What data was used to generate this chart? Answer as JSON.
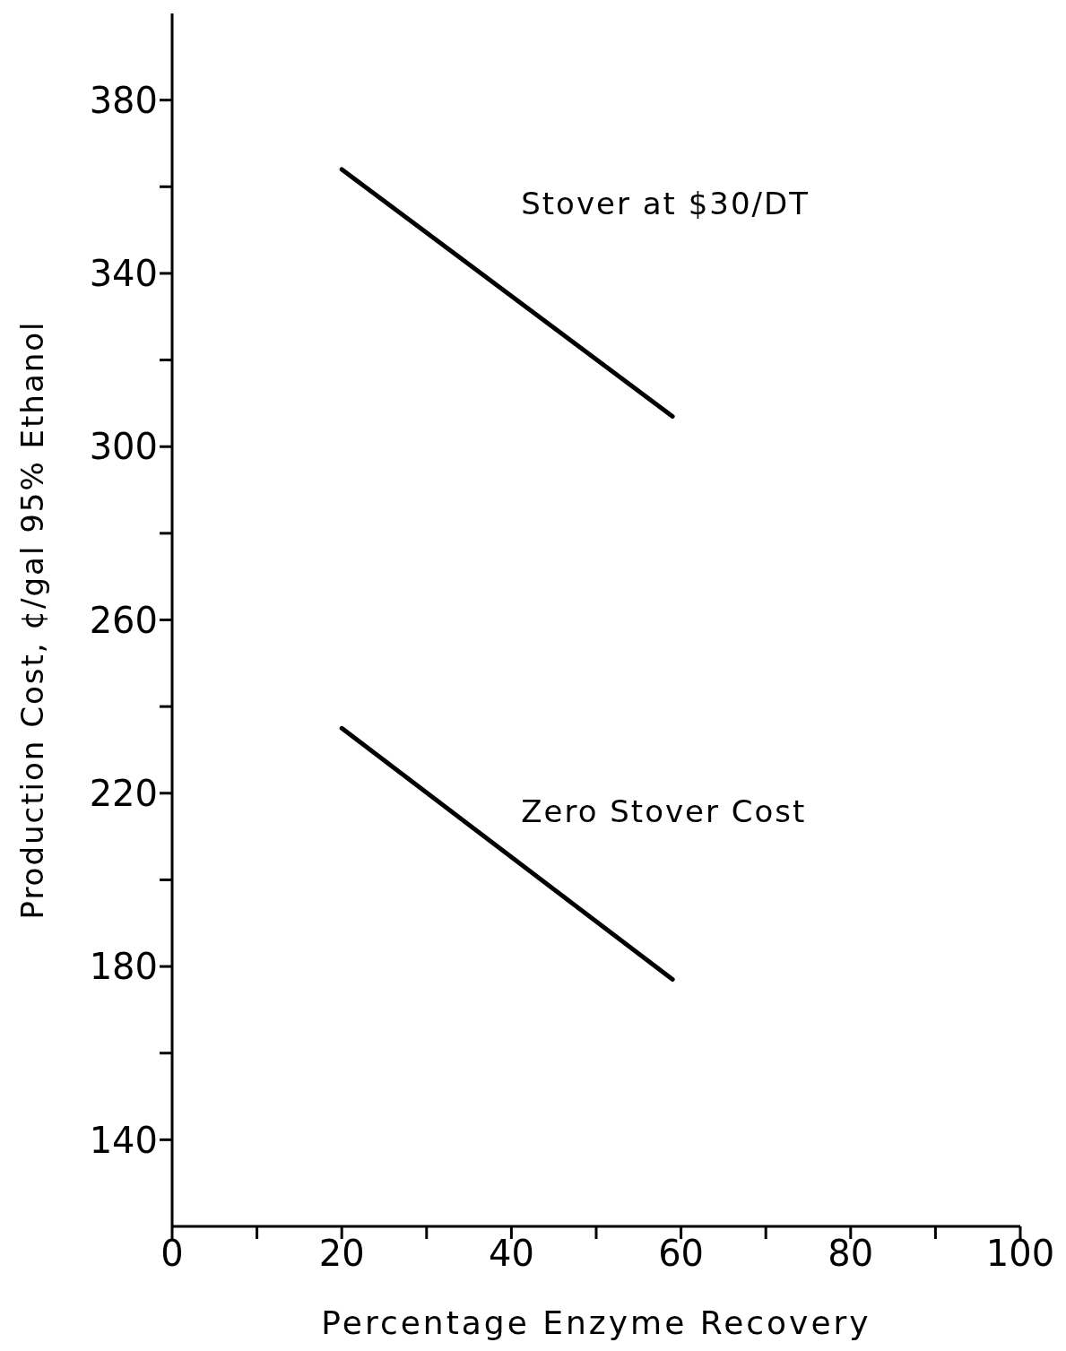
{
  "chart_data": {
    "type": "line",
    "xlabel": "Percentage Enzyme Recovery",
    "ylabel": "Production Cost,  ¢/gal 95% Ethanol",
    "xlim": [
      0,
      100
    ],
    "ylim": [
      120,
      400
    ],
    "xticks": [
      0,
      {
        "value": 10,
        "label": null
      },
      20,
      {
        "value": 30,
        "label": null
      },
      40,
      {
        "value": 50,
        "label": null
      },
      60,
      {
        "value": 70,
        "label": null
      },
      80,
      {
        "value": 90,
        "label": null
      },
      100
    ],
    "yticks": [
      140,
      {
        "value": 160,
        "label": null
      },
      180,
      {
        "value": 200,
        "label": null
      },
      220,
      {
        "value": 240,
        "label": null
      },
      260,
      {
        "value": 280,
        "label": null
      },
      300,
      {
        "value": 320,
        "label": null
      },
      340,
      {
        "value": 360,
        "label": null
      },
      380
    ],
    "x": [
      20,
      59
    ],
    "series": [
      {
        "name": "Stover at $30/DT",
        "color": "#000000",
        "values": [
          364,
          307
        ]
      },
      {
        "name": "Zero Stover Cost",
        "color": "#000000",
        "values": [
          235,
          177
        ]
      }
    ],
    "grid": false,
    "legend": false,
    "marker": "none",
    "line_style": "solid"
  }
}
